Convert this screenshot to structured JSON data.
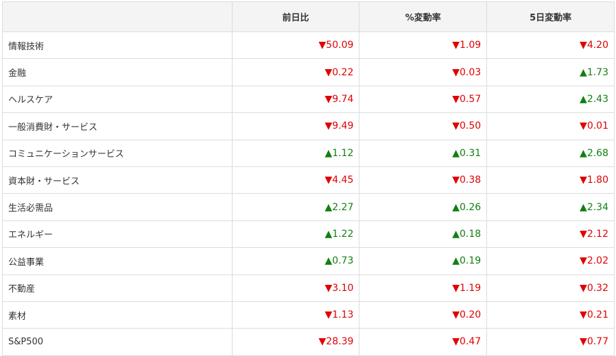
{
  "table": {
    "header": [
      "前日比",
      "%変動率",
      "5日変動率"
    ],
    "rows": [
      [
        "情報技術",
        "▼50.09",
        "▼1.09",
        "▼4.20"
      ],
      [
        "金融",
        "▼0.22",
        "▼0.03",
        "▲1.73"
      ],
      [
        "ヘルスケア",
        "▼9.74",
        "▼0.57",
        "▲2.43"
      ],
      [
        "一般消費財・サービス",
        "▼9.49",
        "▼0.50",
        "▼0.01"
      ],
      [
        "コミュニケーションサービス",
        "▲1.12",
        "▲0.31",
        "▲2.68"
      ],
      [
        "資本財・サービス",
        "▼4.45",
        "▼0.38",
        "▼1.80"
      ],
      [
        "生活必需品",
        "▲2.27",
        "▲0.26",
        "▲2.34"
      ],
      [
        "エネルギー",
        "▲1.22",
        "▲0.18",
        "▼2.12"
      ],
      [
        "公益事業",
        "▲0.73",
        "▲0.19",
        "▼2.02"
      ],
      [
        "不動産",
        "▼3.10",
        "▼1.19",
        "▼0.32"
      ],
      [
        "素材",
        "▼1.13",
        "▼0.20",
        "▼0.21"
      ],
      [
        "S&P500",
        "▼28.39",
        "▼0.47",
        "▼0.77"
      ]
    ]
  }
}
